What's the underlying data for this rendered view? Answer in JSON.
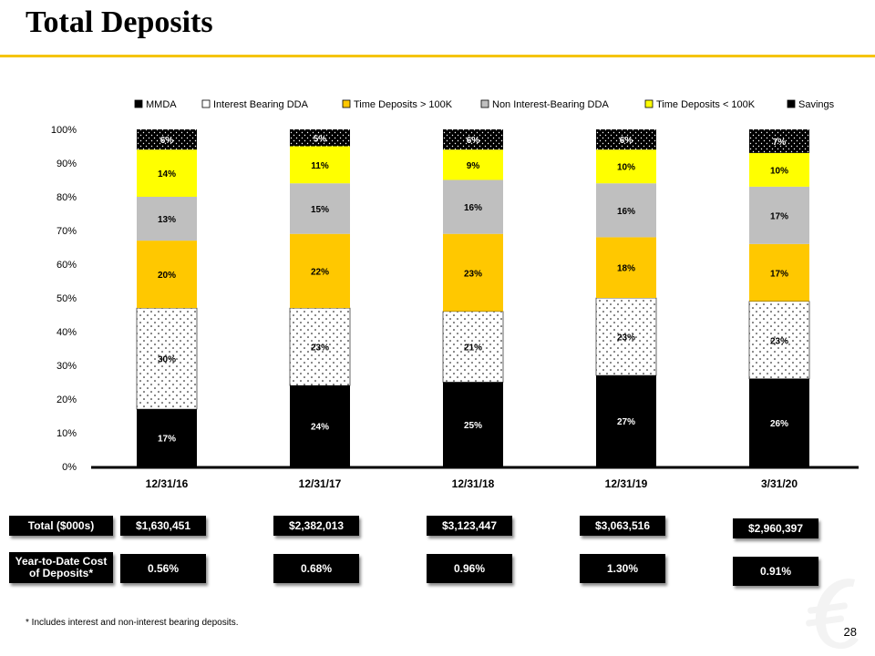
{
  "title": "Total Deposits",
  "colors": {
    "accent": "#f5c400",
    "mmda": "#000000",
    "interest_bearing_dda": "#ffffff",
    "time_over_100k": "#ffc800",
    "non_interest_bearing_dda": "#bfbfbf",
    "time_under_100k": "#ffff00",
    "savings": "#000000"
  },
  "chart_data": {
    "type": "bar",
    "stacked": true,
    "categories": [
      "12/31/16",
      "12/31/17",
      "12/31/18",
      "12/31/19",
      "3/31/20"
    ],
    "ylim": [
      0,
      100
    ],
    "yticks": [
      "0%",
      "10%",
      "20%",
      "30%",
      "40%",
      "50%",
      "60%",
      "70%",
      "80%",
      "90%",
      "100%"
    ],
    "legend_position": "top",
    "grid": false,
    "series": [
      {
        "name": "MMDA",
        "values": [
          17,
          24,
          25,
          27,
          26
        ],
        "labels": [
          "17%",
          "24%",
          "25%",
          "27%",
          "26%"
        ]
      },
      {
        "name": "Interest Bearing DDA",
        "values": [
          30,
          23,
          21,
          23,
          23
        ],
        "labels": [
          "30%",
          "23%",
          "21%",
          "23%",
          "23%"
        ]
      },
      {
        "name": "Time Deposits > 100K",
        "values": [
          20,
          22,
          23,
          18,
          17
        ],
        "labels": [
          "20%",
          "22%",
          "23%",
          "18%",
          "17%"
        ]
      },
      {
        "name": "Non Interest-Bearing DDA",
        "values": [
          13,
          15,
          16,
          16,
          17
        ],
        "labels": [
          "13%",
          "15%",
          "16%",
          "16%",
          "17%"
        ]
      },
      {
        "name": "Time Deposits < 100K",
        "values": [
          14,
          11,
          9,
          10,
          10
        ],
        "labels": [
          "14%",
          "11%",
          "9%",
          "10%",
          "10%"
        ]
      },
      {
        "name": "Savings",
        "values": [
          6,
          5,
          6,
          6,
          7
        ],
        "labels": [
          "6%",
          "5%",
          "6%",
          "6%",
          "7%"
        ]
      }
    ]
  },
  "table": {
    "total_label": "Total ($000s)",
    "cost_label": "Year-to-Date Cost of Deposits*",
    "totals": [
      "$1,630,451",
      "$2,382,013",
      "$3,123,447",
      "$3,063,516",
      "$2,960,397"
    ],
    "costs": [
      "0.56%",
      "0.68%",
      "0.96%",
      "1.30%",
      "0.91%"
    ]
  },
  "footnote": "* Includes interest and non-interest bearing deposits.",
  "page_number": "28",
  "logo_icon": "euro-sign-logo-icon"
}
